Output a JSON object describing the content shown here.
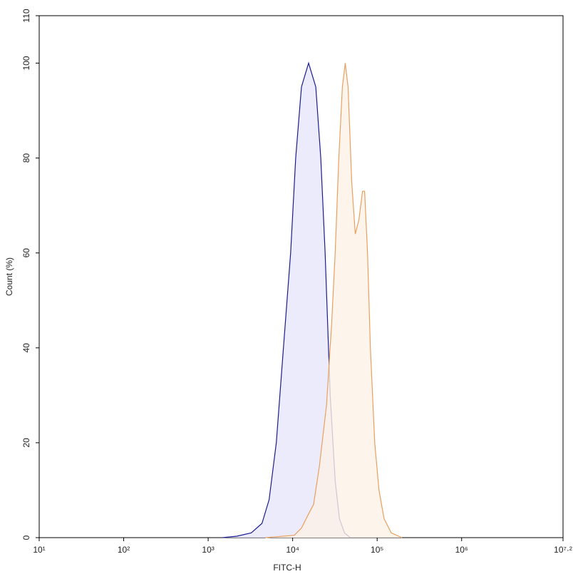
{
  "chart_data": {
    "type": "histogram-overlay",
    "xlabel": "FITC-H",
    "ylabel": "Count (%)",
    "xscale": "log",
    "xlim": [
      10,
      15848932
    ],
    "ylim": [
      0,
      110
    ],
    "xticks": [
      {
        "value": 10,
        "label": "10¹"
      },
      {
        "value": 100,
        "label": "10²"
      },
      {
        "value": 1000,
        "label": "10³"
      },
      {
        "value": 10000,
        "label": "10⁴"
      },
      {
        "value": 100000,
        "label": "10⁵"
      },
      {
        "value": 1000000,
        "label": "10⁶"
      },
      {
        "value": 15848932,
        "label": "10⁷·²"
      }
    ],
    "yticks": [
      0,
      20,
      40,
      60,
      80,
      100,
      110
    ],
    "series": [
      {
        "color": "#1c1c8f",
        "fill": "#e6e6fb",
        "x": [
          1473,
          2180,
          3230,
          4330,
          5260,
          6400,
          7780,
          9470,
          10860,
          12700,
          15450,
          18790,
          21530,
          24220,
          27800,
          31850,
          35810,
          41100,
          48080
        ],
        "values": [
          0,
          0.3,
          1,
          3,
          8,
          20,
          40,
          60,
          80,
          95,
          100,
          95,
          80,
          60,
          30,
          12,
          4,
          1,
          0
        ]
      },
      {
        "color": "#e8a060",
        "fill": "#fdf1e6",
        "x": [
          4770,
          7780,
          10440,
          12700,
          15450,
          17700,
          20700,
          25180,
          28900,
          31850,
          35160,
          38730,
          41880,
          45290,
          50000,
          55080,
          60810,
          67140,
          71120,
          76910,
          83180,
          93540,
          105200,
          120800,
          146900,
          196800
        ],
        "values": [
          0,
          0.3,
          0.5,
          2,
          5,
          7,
          15,
          28,
          45,
          60,
          80,
          95,
          100,
          95,
          75,
          64,
          67,
          73,
          73,
          60,
          40,
          20,
          10,
          4,
          1,
          0
        ]
      }
    ]
  }
}
